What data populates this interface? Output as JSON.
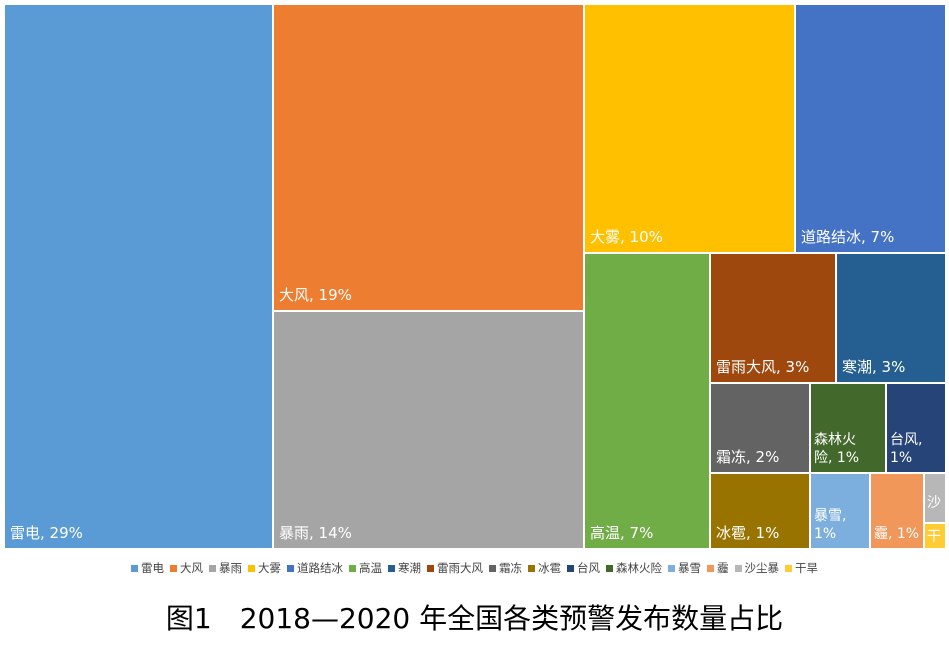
{
  "chart_data": {
    "type": "treemap",
    "items": [
      {
        "name": "雷电",
        "label": "雷电, 29%",
        "value": 29,
        "color": "#5B9BD5"
      },
      {
        "name": "大风",
        "label": "大风, 19%",
        "value": 19,
        "color": "#ED7D31"
      },
      {
        "name": "暴雨",
        "label": "暴雨, 14%",
        "value": 14,
        "color": "#A5A5A5"
      },
      {
        "name": "大雾",
        "label": "大雾, 10%",
        "value": 10,
        "color": "#FFC000"
      },
      {
        "name": "道路结冰",
        "label": "道路结冰, 7%",
        "value": 7,
        "color": "#4472C4"
      },
      {
        "name": "高温",
        "label": "高温, 7%",
        "value": 7,
        "color": "#70AD47"
      },
      {
        "name": "寒潮",
        "label": "寒潮, 3%",
        "value": 3,
        "color": "#255E91"
      },
      {
        "name": "雷雨大风",
        "label": "雷雨大风, 3%",
        "value": 3,
        "color": "#9E480E"
      },
      {
        "name": "霜冻",
        "label": "霜冻, 2%",
        "value": 2,
        "color": "#636363"
      },
      {
        "name": "冰雹",
        "label": "冰雹, 1%",
        "value": 1,
        "color": "#997300"
      },
      {
        "name": "台风",
        "label": "台风,\n1%",
        "value": 1,
        "color": "#264478"
      },
      {
        "name": "森林火险",
        "label": "森林火\n险, 1%",
        "value": 1,
        "color": "#43682B"
      },
      {
        "name": "暴雪",
        "label": "暴雪,\n1%",
        "value": 1,
        "color": "#7CAFDD"
      },
      {
        "name": "霾",
        "label": "霾, 1%",
        "value": 1,
        "color": "#F1975A"
      },
      {
        "name": "沙尘暴",
        "label": "沙",
        "value": null,
        "color": "#B7B7B7"
      },
      {
        "name": "干旱",
        "label": "干",
        "value": null,
        "color": "#FFCD33"
      }
    ],
    "legend": {
      "position": "bottom",
      "entries": [
        "雷电",
        "大风",
        "暴雨",
        "大雾",
        "道路结冰",
        "高温",
        "寒潮",
        "雷雨大风",
        "霜冻",
        "冰雹",
        "台风",
        "森林火险",
        "暴雪",
        "霾",
        "沙尘暴",
        "干旱"
      ]
    }
  },
  "caption": "图1　2018—2020 年全国各类预警发布数量占比"
}
